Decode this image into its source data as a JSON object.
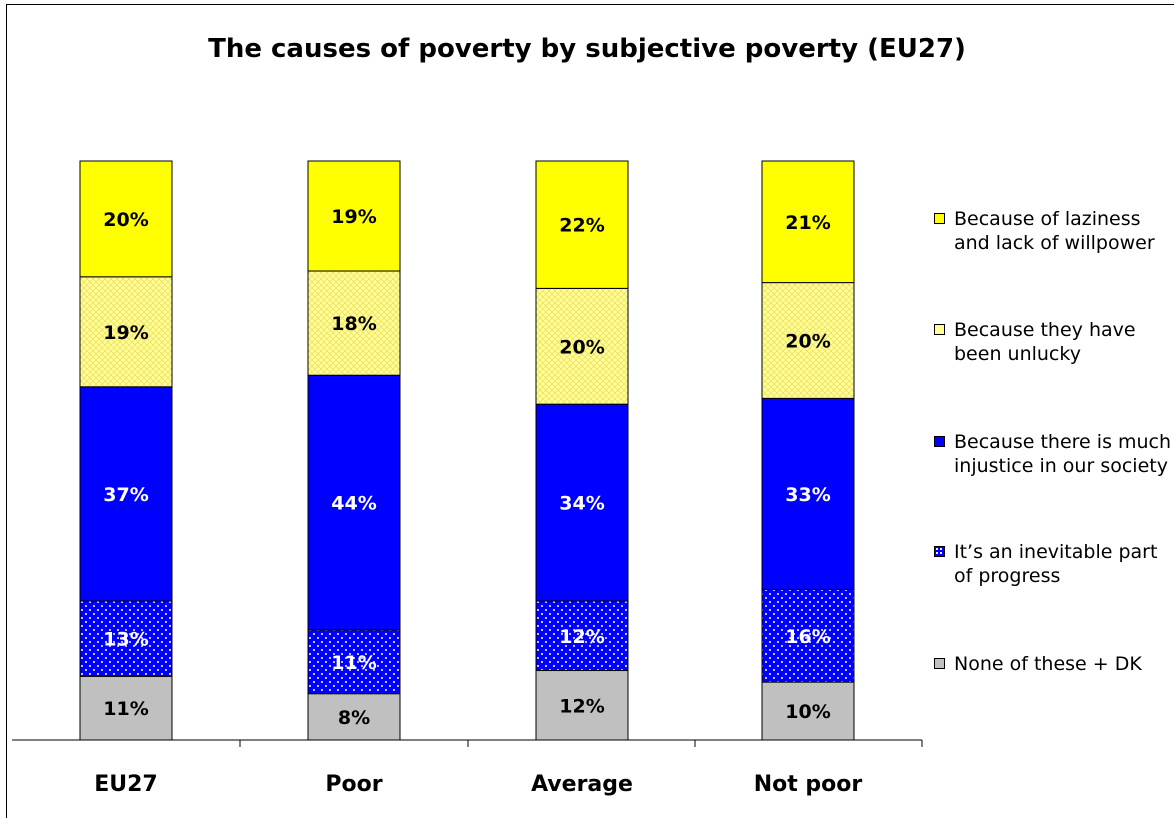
{
  "title": "The causes of poverty by subjective poverty (EU27)",
  "colors": {
    "yellow": "#ffff00",
    "light_yellow": "#ffff99",
    "blue": "#0000ff",
    "gray": "#c0c0c0"
  },
  "legend": [
    {
      "label": "Because of laziness and lack of willpower",
      "color": "#ffff00",
      "pattern": "solid"
    },
    {
      "label": "Because they have been unlucky",
      "color": "#ffff99",
      "pattern": "crosshatch"
    },
    {
      "label": "Because there is much injustice in our society",
      "color": "#0000ff",
      "pattern": "solid"
    },
    {
      "label": "It’s an inevitable part of progress",
      "color": "#0000ff",
      "pattern": "dotted"
    },
    {
      "label": "None of these + DK",
      "color": "#c0c0c0",
      "pattern": "solid"
    }
  ],
  "chart_data": {
    "type": "bar",
    "stacked": true,
    "title": "The causes of poverty by subjective poverty (EU27)",
    "categories": [
      "EU27",
      "Poor",
      "Average",
      "Not poor"
    ],
    "series": [
      {
        "name": "None of these + DK",
        "values": [
          11,
          8,
          12,
          10
        ],
        "labels": [
          "11%",
          "8%",
          "12%",
          "10%"
        ]
      },
      {
        "name": "It’s an inevitable part of progress",
        "values": [
          13,
          11,
          12,
          16
        ],
        "labels": [
          "13%",
          "11%",
          "12%",
          "16%"
        ]
      },
      {
        "name": "Because there is much injustice in our society",
        "values": [
          37,
          44,
          34,
          33
        ],
        "labels": [
          "37%",
          "44%",
          "34%",
          "33%"
        ]
      },
      {
        "name": "Because they have been unlucky",
        "values": [
          19,
          18,
          20,
          20
        ],
        "labels": [
          "19%",
          "18%",
          "20%",
          "20%"
        ]
      },
      {
        "name": "Because of laziness and lack of willpower",
        "values": [
          20,
          19,
          22,
          21
        ],
        "labels": [
          "20%",
          "19%",
          "22%",
          "21%"
        ]
      }
    ],
    "ylim": [
      0,
      100
    ],
    "grid": false,
    "legend_position": "right"
  }
}
